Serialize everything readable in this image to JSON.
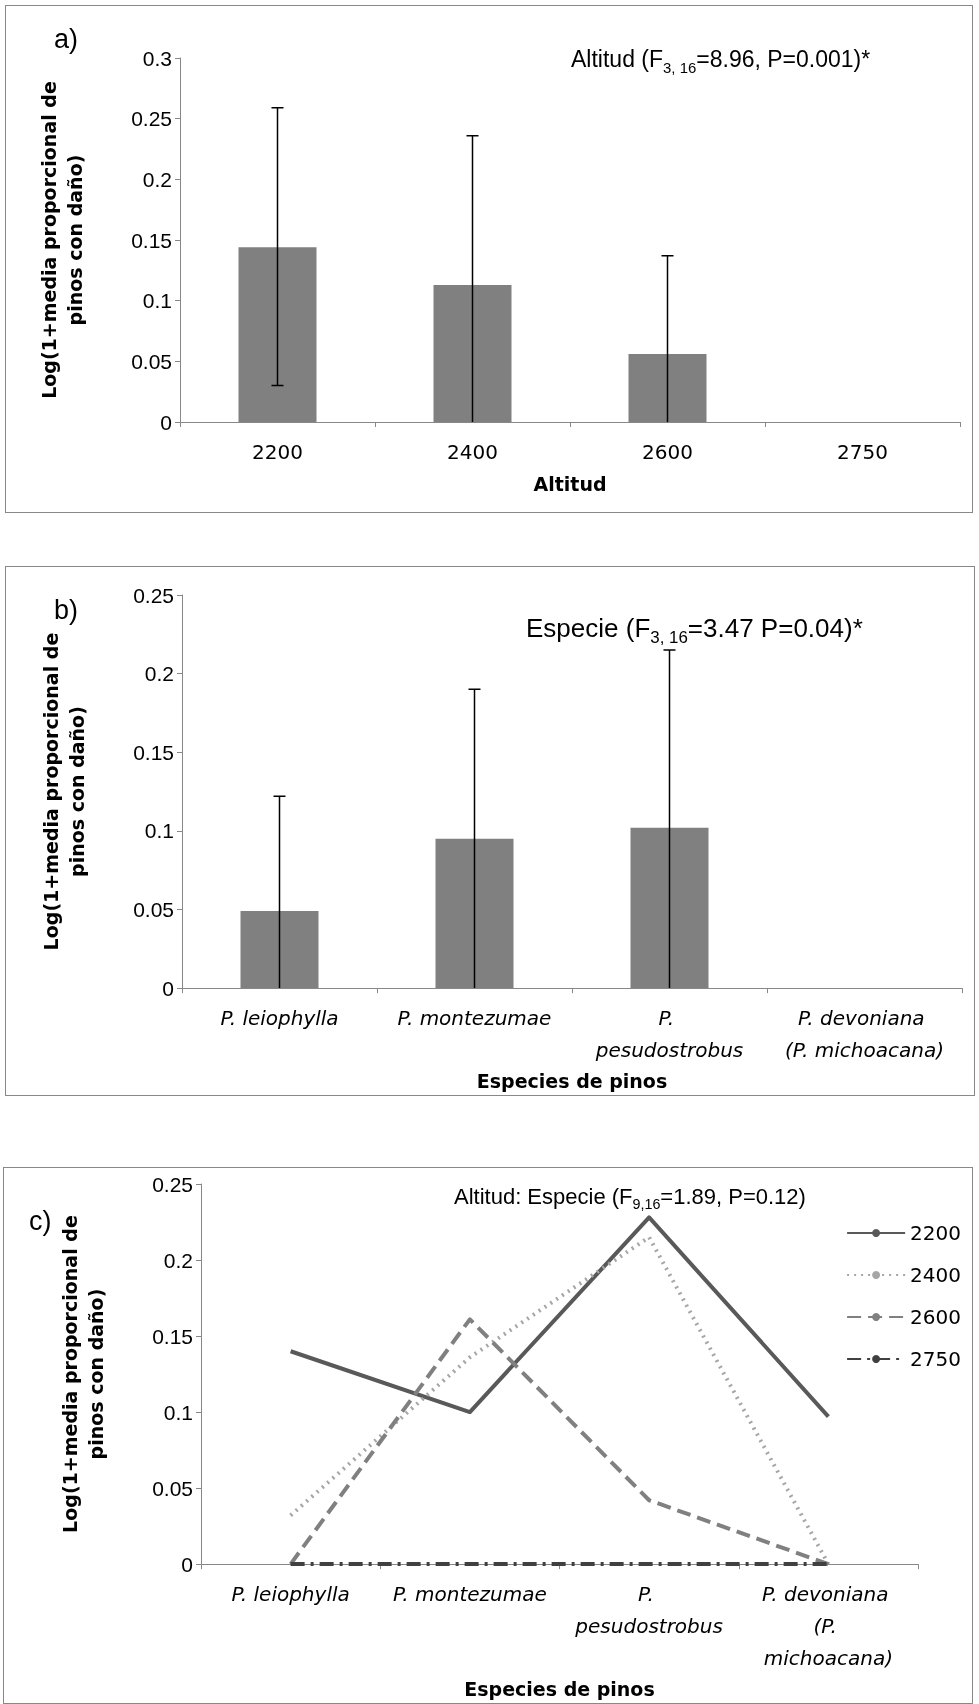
{
  "chart_data": [
    {
      "type": "bar",
      "xlabel": "Altitud",
      "ylabel": "Log(1+media proporcional de pinos con daño)",
      "annotations": [
        "a)",
        "Altitud (F$_{3, 16}$=8.96, P=0.001)*"
      ],
      "categories": [
        "2200",
        "2400",
        "2600",
        "2750"
      ],
      "values": [
        0.144,
        0.113,
        0.056,
        0
      ],
      "color": "#808080",
      "errors": [
        [
          0.03,
          0.259
        ],
        [
          0,
          0.236
        ],
        [
          0,
          0.137
        ],
        null
      ],
      "ylim": [
        0,
        0.3
      ],
      "yticks": [
        0,
        0.05,
        0.1,
        0.15,
        0.2,
        0.25,
        0.3
      ],
      "grid": false,
      "legend": false
    },
    {
      "type": "bar",
      "xlabel": "Especies de pinos",
      "ylabel": "Log(1+media proporcional de pinos con daño)",
      "annotations": [
        "b)",
        "Especie (F$_{3, 16}$=3.47 P=0.04)*"
      ],
      "categories": [
        "P. leiophylla",
        "P. montezumae",
        "P. pesudostrobus",
        "P. devoniana (P. michoacana)"
      ],
      "values": [
        0.049,
        0.095,
        0.102,
        0
      ],
      "color": "#808080",
      "errors": [
        [
          0,
          0.122
        ],
        [
          0,
          0.19
        ],
        [
          0,
          0.215
        ],
        null
      ],
      "ylim": [
        0,
        0.25
      ],
      "yticks": [
        0,
        0.05,
        0.1,
        0.15,
        0.2,
        0.25
      ],
      "grid": false,
      "legend": false
    },
    {
      "type": "line",
      "xlabel": "Especies de pinos",
      "ylabel": "Log(1+media proporcional de pinos con daño)",
      "annotations": [
        "c)",
        "Altitud: Especie (F$_{9,16}$=1.89, P=0.12)"
      ],
      "categories": [
        "P. leiophylla",
        "P. montezumae",
        "P. pesudostrobus",
        "P. devoniana (P. michoacana)"
      ],
      "series": [
        {
          "name": "2200",
          "color": "#595959",
          "line_style": "solid",
          "values": [
            0.14,
            0.1,
            0.228,
            0.097
          ]
        },
        {
          "name": "2400",
          "color": "#a6a6a6",
          "line_style": "dotted",
          "values": [
            0.032,
            0.136,
            0.215,
            0
          ]
        },
        {
          "name": "2600",
          "color": "#808080",
          "line_style": "dashed",
          "values": [
            0,
            0.161,
            0.042,
            0
          ]
        },
        {
          "name": "2750",
          "color": "#404040",
          "line_style": "dashdot",
          "values": [
            0,
            0,
            0,
            0
          ]
        }
      ],
      "ylim": [
        0,
        0.25
      ],
      "yticks": [
        0,
        0.05,
        0.1,
        0.15,
        0.2,
        0.25
      ],
      "grid": false,
      "legend": "right",
      "marker": "none"
    }
  ]
}
